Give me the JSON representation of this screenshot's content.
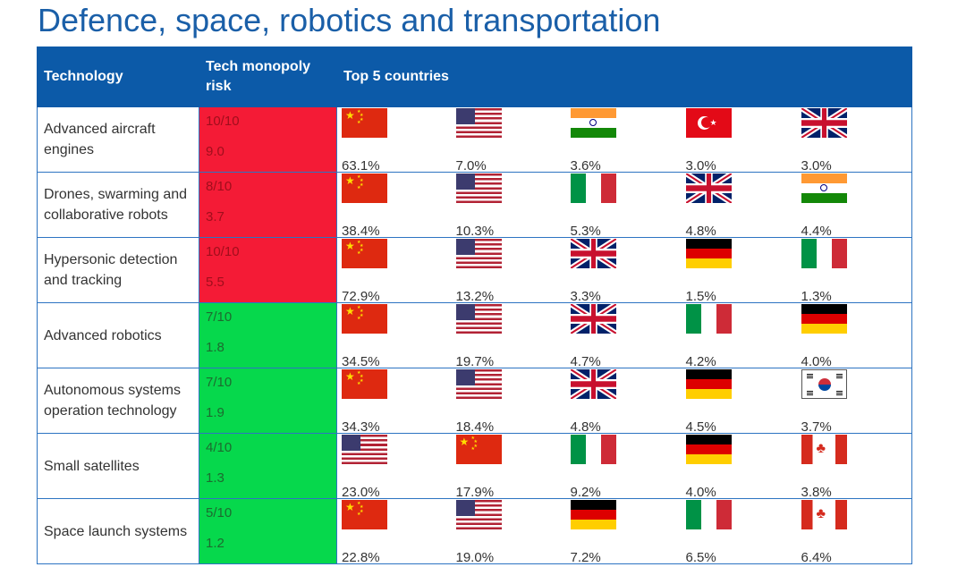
{
  "title": "Defence, space, robotics and transportation",
  "columns": {
    "technology": "Technology",
    "risk": "Tech monopoly risk",
    "top5": "Top 5 countries"
  },
  "rows": [
    {
      "technology": "Advanced aircraft engines",
      "risk_score": "10/10",
      "risk_value": "9.0",
      "risk_color": "#f41b36",
      "countries": [
        {
          "flag": "china-flag",
          "share": "63.1%"
        },
        {
          "flag": "usa-flag",
          "share": "7.0%"
        },
        {
          "flag": "india-flag",
          "share": "3.6%"
        },
        {
          "flag": "turkey-flag",
          "share": "3.0%"
        },
        {
          "flag": "uk-flag",
          "share": "3.0%"
        }
      ]
    },
    {
      "technology": "Drones, swarming and collaborative robots",
      "risk_score": "8/10",
      "risk_value": "3.7",
      "risk_color": "#f41b36",
      "countries": [
        {
          "flag": "china-flag",
          "share": "38.4%"
        },
        {
          "flag": "usa-flag",
          "share": "10.3%"
        },
        {
          "flag": "italy-flag",
          "share": "5.3%"
        },
        {
          "flag": "uk-flag",
          "share": "4.8%"
        },
        {
          "flag": "india-flag",
          "share": "4.4%"
        }
      ]
    },
    {
      "technology": "Hypersonic detection and tracking",
      "risk_score": "10/10",
      "risk_value": "5.5",
      "risk_color": "#f41b36",
      "countries": [
        {
          "flag": "china-flag",
          "share": "72.9%"
        },
        {
          "flag": "usa-flag",
          "share": "13.2%"
        },
        {
          "flag": "uk-flag",
          "share": "3.3%"
        },
        {
          "flag": "germany-flag",
          "share": "1.5%"
        },
        {
          "flag": "italy-flag",
          "share": "1.3%"
        }
      ]
    },
    {
      "technology": "Advanced robotics",
      "risk_score": "7/10",
      "risk_value": "1.8",
      "risk_color": "#06d84c",
      "countries": [
        {
          "flag": "china-flag",
          "share": "34.5%"
        },
        {
          "flag": "usa-flag",
          "share": "19.7%"
        },
        {
          "flag": "uk-flag",
          "share": "4.7%"
        },
        {
          "flag": "italy-flag",
          "share": "4.2%"
        },
        {
          "flag": "germany-flag",
          "share": "4.0%"
        }
      ]
    },
    {
      "technology": "Autonomous systems operation technology",
      "risk_score": "7/10",
      "risk_value": "1.9",
      "risk_color": "#06d84c",
      "countries": [
        {
          "flag": "china-flag",
          "share": "34.3%"
        },
        {
          "flag": "usa-flag",
          "share": "18.4%"
        },
        {
          "flag": "uk-flag",
          "share": "4.8%"
        },
        {
          "flag": "germany-flag",
          "share": "4.5%"
        },
        {
          "flag": "south-korea-flag",
          "share": "3.7%"
        }
      ]
    },
    {
      "technology": "Small satellites",
      "risk_score": "4/10",
      "risk_value": "1.3",
      "risk_color": "#06d84c",
      "countries": [
        {
          "flag": "usa-flag",
          "share": "23.0%"
        },
        {
          "flag": "china-flag",
          "share": "17.9%"
        },
        {
          "flag": "italy-flag",
          "share": "9.2%"
        },
        {
          "flag": "germany-flag",
          "share": "4.0%"
        },
        {
          "flag": "canada-flag",
          "share": "3.8%"
        }
      ]
    },
    {
      "technology": "Space launch systems",
      "risk_score": "5/10",
      "risk_value": "1.2",
      "risk_color": "#06d84c",
      "countries": [
        {
          "flag": "china-flag",
          "share": "22.8%"
        },
        {
          "flag": "usa-flag",
          "share": "19.0%"
        },
        {
          "flag": "germany-flag",
          "share": "7.2%"
        },
        {
          "flag": "italy-flag",
          "share": "6.5%"
        },
        {
          "flag": "canada-flag",
          "share": "6.4%"
        }
      ]
    }
  ]
}
